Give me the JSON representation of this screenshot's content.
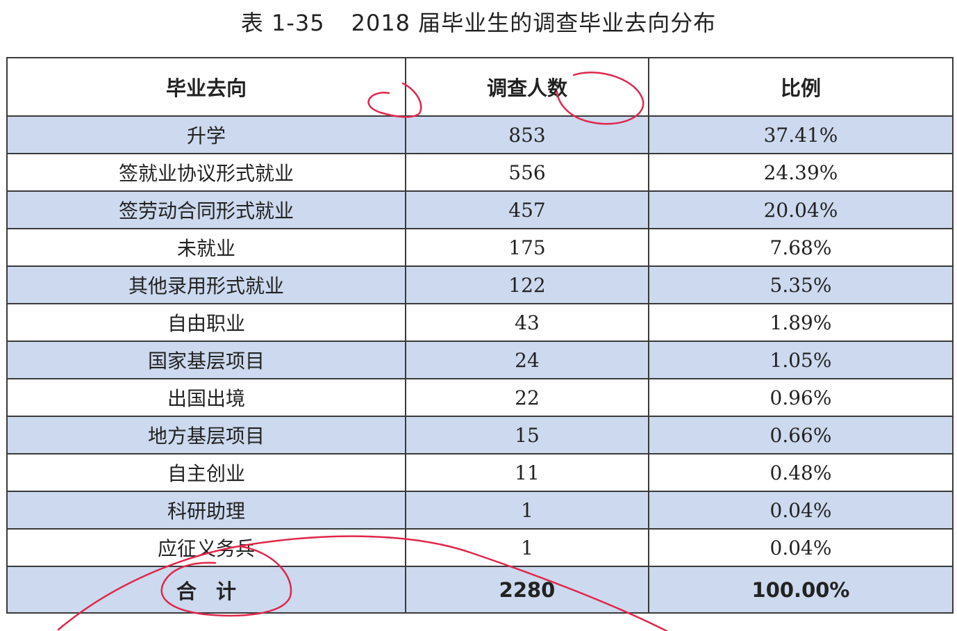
{
  "caption": {
    "label": "表 1-35",
    "title": "2018 届毕业生的调查毕业去向分布"
  },
  "table": {
    "headers": [
      "毕业去向",
      "调查人数",
      "比例"
    ],
    "rows": [
      [
        "升学",
        "853",
        "37.41%"
      ],
      [
        "签就业协议形式就业",
        "556",
        "24.39%"
      ],
      [
        "签劳动合同形式就业",
        "457",
        "20.04%"
      ],
      [
        "未就业",
        "175",
        "7.68%"
      ],
      [
        "其他录用形式就业",
        "122",
        "5.35%"
      ],
      [
        "自由职业",
        "43",
        "1.89%"
      ],
      [
        "国家基层项目",
        "24",
        "1.05%"
      ],
      [
        "出国出境",
        "22",
        "0.96%"
      ],
      [
        "地方基层项目",
        "15",
        "0.66%"
      ],
      [
        "自主创业",
        "11",
        "0.48%"
      ],
      [
        "科研助理",
        "1",
        "0.04%"
      ],
      [
        "应征义务兵",
        "1",
        "0.04%"
      ]
    ],
    "total": [
      "合计",
      "2280",
      "100.00%"
    ]
  },
  "colors": {
    "shaded_row": "#ccd9ee",
    "annotation_ink": "#e0264a"
  }
}
